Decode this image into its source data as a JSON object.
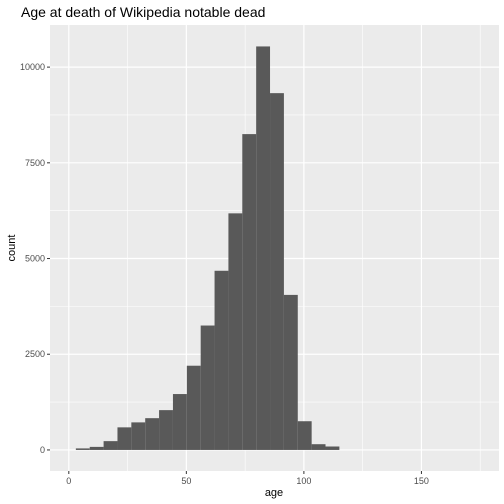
{
  "chart_data": {
    "type": "histogram",
    "title": "Age at death of Wikipedia notable dead",
    "xlabel": "age",
    "ylabel": "count",
    "xlim": [
      -8,
      183
    ],
    "ylim": [
      -550,
      11100
    ],
    "x_ticks": [
      0,
      50,
      100,
      150
    ],
    "y_ticks": [
      0,
      2500,
      5000,
      7500,
      10000
    ],
    "bin_width": 5.9,
    "bins": [
      {
        "start": 3.0,
        "end": 8.9,
        "count": 40
      },
      {
        "start": 8.9,
        "end": 14.8,
        "count": 80
      },
      {
        "start": 14.8,
        "end": 20.7,
        "count": 230
      },
      {
        "start": 20.7,
        "end": 26.6,
        "count": 590
      },
      {
        "start": 26.6,
        "end": 32.5,
        "count": 720
      },
      {
        "start": 32.5,
        "end": 38.4,
        "count": 830
      },
      {
        "start": 38.4,
        "end": 44.3,
        "count": 1040
      },
      {
        "start": 44.3,
        "end": 50.2,
        "count": 1460
      },
      {
        "start": 50.2,
        "end": 56.1,
        "count": 2200
      },
      {
        "start": 56.1,
        "end": 62.0,
        "count": 3250
      },
      {
        "start": 62.0,
        "end": 67.9,
        "count": 4680
      },
      {
        "start": 67.9,
        "end": 73.8,
        "count": 6180
      },
      {
        "start": 73.8,
        "end": 79.7,
        "count": 8250
      },
      {
        "start": 79.7,
        "end": 85.6,
        "count": 10540
      },
      {
        "start": 85.6,
        "end": 91.5,
        "count": 9320
      },
      {
        "start": 91.5,
        "end": 97.4,
        "count": 4050
      },
      {
        "start": 97.4,
        "end": 103.3,
        "count": 750
      },
      {
        "start": 103.3,
        "end": 109.2,
        "count": 150
      },
      {
        "start": 109.2,
        "end": 115.1,
        "count": 90
      }
    ],
    "grid": true,
    "colors": {
      "panel_background": "#ebebeb",
      "grid_major": "#ffffff",
      "bar_fill": "#595959"
    }
  }
}
